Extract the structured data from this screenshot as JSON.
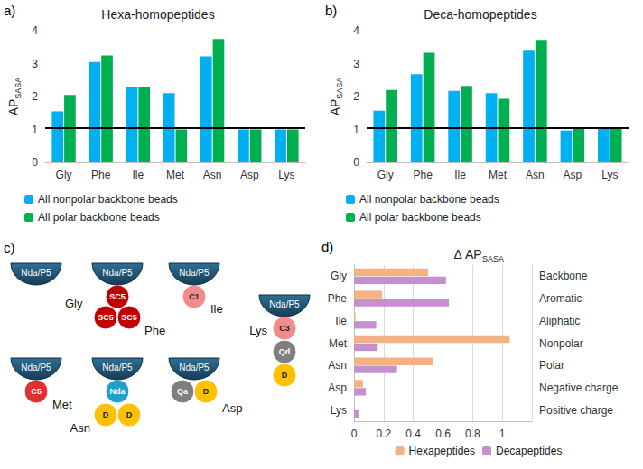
{
  "chart_data": [
    {
      "panel": "a)",
      "type": "bar",
      "title": "Hexa-homopeptides",
      "ylabel": "AP",
      "ylabel_subscript": "SASA",
      "categories": [
        "Gly",
        "Phe",
        "Ile",
        "Met",
        "Asn",
        "Asp",
        "Lys"
      ],
      "series": [
        {
          "name": "All nonpolar backbone beads",
          "color": "#00b0f0",
          "values": [
            1.55,
            3.05,
            2.28,
            2.1,
            3.22,
            1.0,
            1.0
          ]
        },
        {
          "name": "All polar backbone beads",
          "color": "#00b050",
          "values": [
            2.05,
            3.25,
            2.28,
            1.0,
            3.75,
            1.0,
            1.0
          ]
        }
      ],
      "ylim": [
        0,
        4
      ],
      "yticks": [
        0,
        1,
        2,
        3,
        4
      ],
      "reference_line": 1.05,
      "grid": false,
      "legend": "bottom"
    },
    {
      "panel": "b)",
      "type": "bar",
      "title": "Deca-homopeptides",
      "ylabel": "AP",
      "ylabel_subscript": "SASA",
      "categories": [
        "Gly",
        "Phe",
        "Ile",
        "Met",
        "Asn",
        "Asp",
        "Lys"
      ],
      "series": [
        {
          "name": "All nonpolar backbone beads",
          "color": "#00b0f0",
          "values": [
            1.57,
            2.68,
            2.17,
            2.1,
            3.42,
            0.97,
            1.05
          ]
        },
        {
          "name": "All polar backbone beads",
          "color": "#00b050",
          "values": [
            2.2,
            3.33,
            2.32,
            1.93,
            3.72,
            1.05,
            1.05
          ]
        }
      ],
      "ylim": [
        0,
        4
      ],
      "yticks": [
        0,
        1,
        2,
        3,
        4
      ],
      "reference_line": 1.05,
      "grid": false,
      "legend": "bottom"
    },
    {
      "panel": "d)",
      "type": "bar",
      "orientation": "horizontal",
      "title": "Δ AP",
      "title_subscript": "SASA",
      "categories": [
        "Gly",
        "Phe",
        "Ile",
        "Met",
        "Asn",
        "Asp",
        "Lys"
      ],
      "groups": [
        "Backbone",
        "Aromatic",
        "Aliphatic",
        "Nonpolar",
        "Polar",
        "Negative charge",
        "Positive charge"
      ],
      "series": [
        {
          "name": "Hexapeptides",
          "color": "#f4b183",
          "values": [
            0.5,
            0.19,
            0.01,
            1.05,
            0.53,
            0.06,
            0.0
          ]
        },
        {
          "name": "Decapeptides",
          "color": "#c58fd0",
          "values": [
            0.62,
            0.64,
            0.15,
            0.16,
            0.29,
            0.08,
            0.03
          ]
        }
      ],
      "xlim": [
        0,
        1.2
      ],
      "xticks": [
        0,
        0.2,
        0.4,
        0.6,
        0.8,
        1
      ],
      "grid": true,
      "legend": "bottom"
    }
  ],
  "diagram": {
    "panel": "c)",
    "residues": [
      {
        "name": "Gly",
        "backbone": "Nda/P5",
        "beads": []
      },
      {
        "name": "Phe",
        "backbone": "Nda/P5",
        "beads": [
          {
            "label": "SC5",
            "color": "#c00000"
          },
          {
            "label": "SC5",
            "color": "#c00000"
          },
          {
            "label": "SC5",
            "color": "#c00000"
          }
        ]
      },
      {
        "name": "Ile",
        "backbone": "Nda/P5",
        "beads": [
          {
            "label": "C1",
            "color": "#f08c8c"
          }
        ]
      },
      {
        "name": "Met",
        "backbone": "Nda/P5",
        "beads": [
          {
            "label": "C5",
            "color": "#e03030"
          }
        ]
      },
      {
        "name": "Asn",
        "backbone": "Nda/P5",
        "beads": [
          {
            "label": "Nda",
            "color": "#1f9fd0"
          },
          {
            "label": "D",
            "color": "#ffc000"
          },
          {
            "label": "D",
            "color": "#ffc000"
          }
        ]
      },
      {
        "name": "Asp",
        "backbone": "Nda/P5",
        "beads": [
          {
            "label": "Qa",
            "color": "#7f7f7f"
          },
          {
            "label": "D",
            "color": "#ffc000"
          }
        ]
      },
      {
        "name": "Lys",
        "backbone": "Nda/P5",
        "beads": [
          {
            "label": "C3",
            "color": "#f08c8c"
          },
          {
            "label": "Qd",
            "color": "#7f7f7f"
          },
          {
            "label": "D",
            "color": "#ffc000"
          }
        ]
      }
    ]
  }
}
